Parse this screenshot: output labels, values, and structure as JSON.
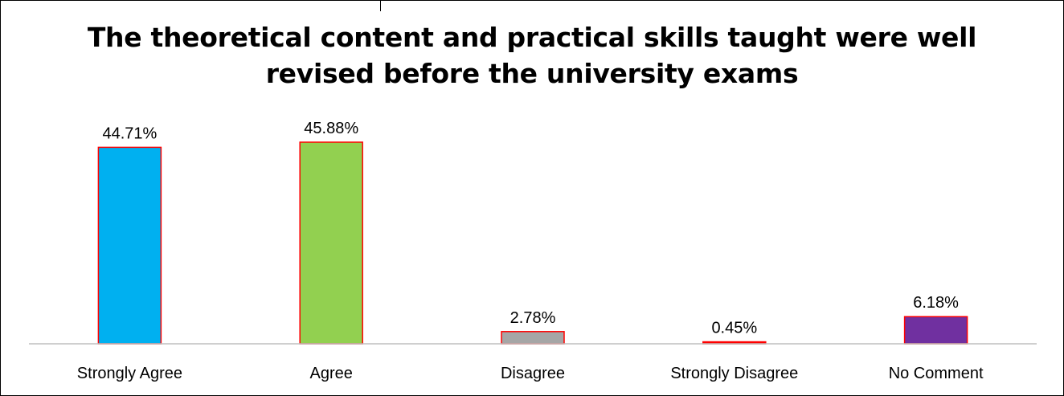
{
  "chart_data": {
    "type": "bar",
    "title_lines": [
      "The theoretical content and practical skills taught were well",
      "revised before the university exams"
    ],
    "categories": [
      "Strongly Agree",
      "Agree",
      "Disagree",
      "Strongly Disagree",
      "No Comment"
    ],
    "values": [
      44.71,
      45.88,
      2.78,
      0.45,
      6.18
    ],
    "data_labels": [
      "44.71%",
      "45.88%",
      "2.78%",
      "0.45%",
      "6.18%"
    ],
    "colors": [
      "#00B0F0",
      "#92D050",
      "#A6A6A6",
      "#FF0000",
      "#7030A0"
    ],
    "bar_border_color": "#FF0000",
    "ylim": [
      0,
      50
    ],
    "grid": false,
    "legend": "none"
  }
}
